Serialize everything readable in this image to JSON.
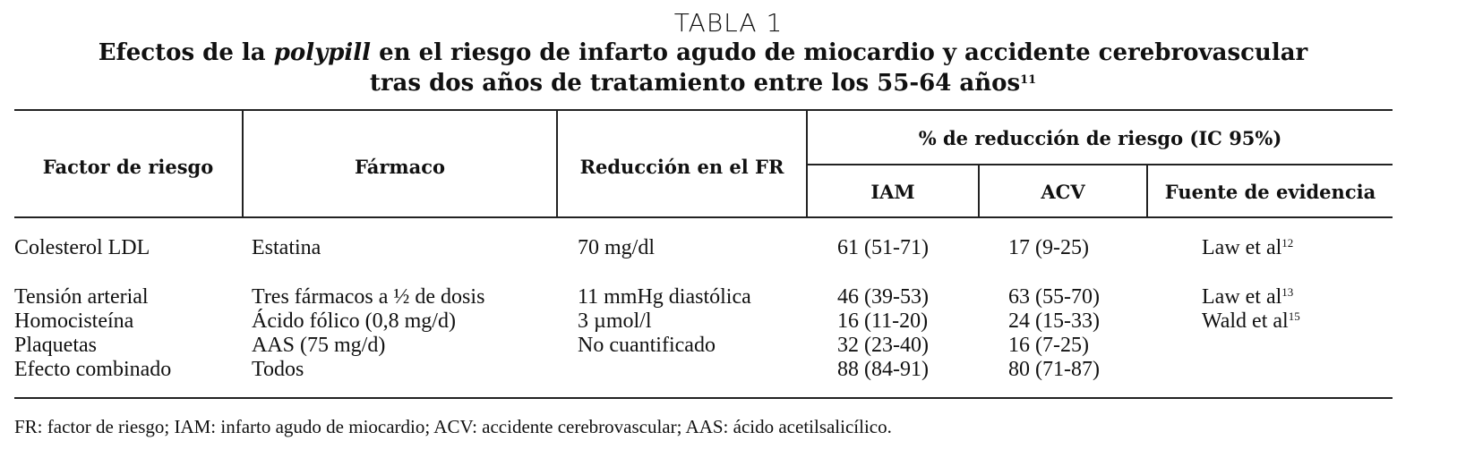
{
  "title": "TABLA 1",
  "heading": {
    "before": "Efectos de la ",
    "italic": "polypill",
    "line1_after": " en el riesgo de infarto agudo de miocardio y accidente cerebrovascular",
    "line2": "tras dos años de tratamiento entre los 55-64 años",
    "ref": "11"
  },
  "table": {
    "headers": {
      "factor": "Factor de riesgo",
      "drug": "Fármaco",
      "reduction": "Reducción en el FR",
      "group": "% de reducción de riesgo (IC 95%)",
      "iam": "IAM",
      "acv": "ACV",
      "source": "Fuente de evidencia"
    },
    "rows": [
      {
        "factor": "Colesterol LDL",
        "drug": "Estatina",
        "reduction": "70 mg/dl",
        "iam": "61 (51-71)",
        "acv": "17 (9-25)",
        "source": "Law et al",
        "ref": "12"
      },
      {
        "factor": "Tensión arterial",
        "drug": "Tres fármacos a ½ de dosis",
        "reduction": "11 mmHg diastólica",
        "iam": "46 (39-53)",
        "acv": "63 (55-70)",
        "source": "Law et al",
        "ref": "13"
      },
      {
        "factor": "Homocisteína",
        "drug": "Ácido fólico (0,8 mg/d)",
        "reduction": "3 µmol/l",
        "iam": "16 (11-20)",
        "acv": "24 (15-33)",
        "source": "Wald et al",
        "ref": "15"
      },
      {
        "factor": "Plaquetas",
        "drug": "AAS (75 mg/d)",
        "reduction": "No cuantificado",
        "iam": "32 (23-40)",
        "acv": "16 (7-25)"
      },
      {
        "factor": "Efecto combinado",
        "drug": "Todos",
        "iam": "88 (84-91)",
        "acv": "80 (71-87)"
      }
    ]
  },
  "footnote": "FR: factor de riesgo; IAM: infarto agudo de miocardio; ACV: accidente cerebrovascular; AAS: ácido acetilsalicílico."
}
